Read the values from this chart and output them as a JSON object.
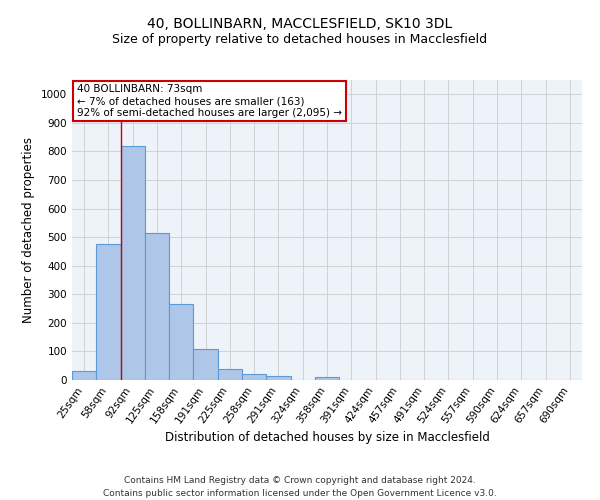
{
  "title1": "40, BOLLINBARN, MACCLESFIELD, SK10 3DL",
  "title2": "Size of property relative to detached houses in Macclesfield",
  "xlabel": "Distribution of detached houses by size in Macclesfield",
  "ylabel": "Number of detached properties",
  "categories": [
    "25sqm",
    "58sqm",
    "92sqm",
    "125sqm",
    "158sqm",
    "191sqm",
    "225sqm",
    "258sqm",
    "291sqm",
    "324sqm",
    "358sqm",
    "391sqm",
    "424sqm",
    "457sqm",
    "491sqm",
    "524sqm",
    "557sqm",
    "590sqm",
    "624sqm",
    "657sqm",
    "690sqm"
  ],
  "values": [
    33,
    477,
    820,
    515,
    265,
    110,
    40,
    22,
    13,
    0,
    10,
    0,
    0,
    0,
    0,
    0,
    0,
    0,
    0,
    0,
    0
  ],
  "bar_color": "#aec6e8",
  "bar_edge_color": "#5b9bd5",
  "property_line_x": 1.5,
  "annotation_text": "40 BOLLINBARN: 73sqm\n← 7% of detached houses are smaller (163)\n92% of semi-detached houses are larger (2,095) →",
  "annotation_box_color": "#ffffff",
  "annotation_box_edge": "#cc0000",
  "property_line_color": "#cc0000",
  "ylim": [
    0,
    1050
  ],
  "yticks": [
    0,
    100,
    200,
    300,
    400,
    500,
    600,
    700,
    800,
    900,
    1000
  ],
  "grid_color": "#cccccc",
  "background_color": "#eef2f9",
  "footer": "Contains HM Land Registry data © Crown copyright and database right 2024.\nContains public sector information licensed under the Open Government Licence v3.0.",
  "title1_fontsize": 10,
  "title2_fontsize": 9,
  "xlabel_fontsize": 8.5,
  "ylabel_fontsize": 8.5,
  "tick_fontsize": 7.5,
  "annotation_fontsize": 7.5,
  "footer_fontsize": 6.5
}
